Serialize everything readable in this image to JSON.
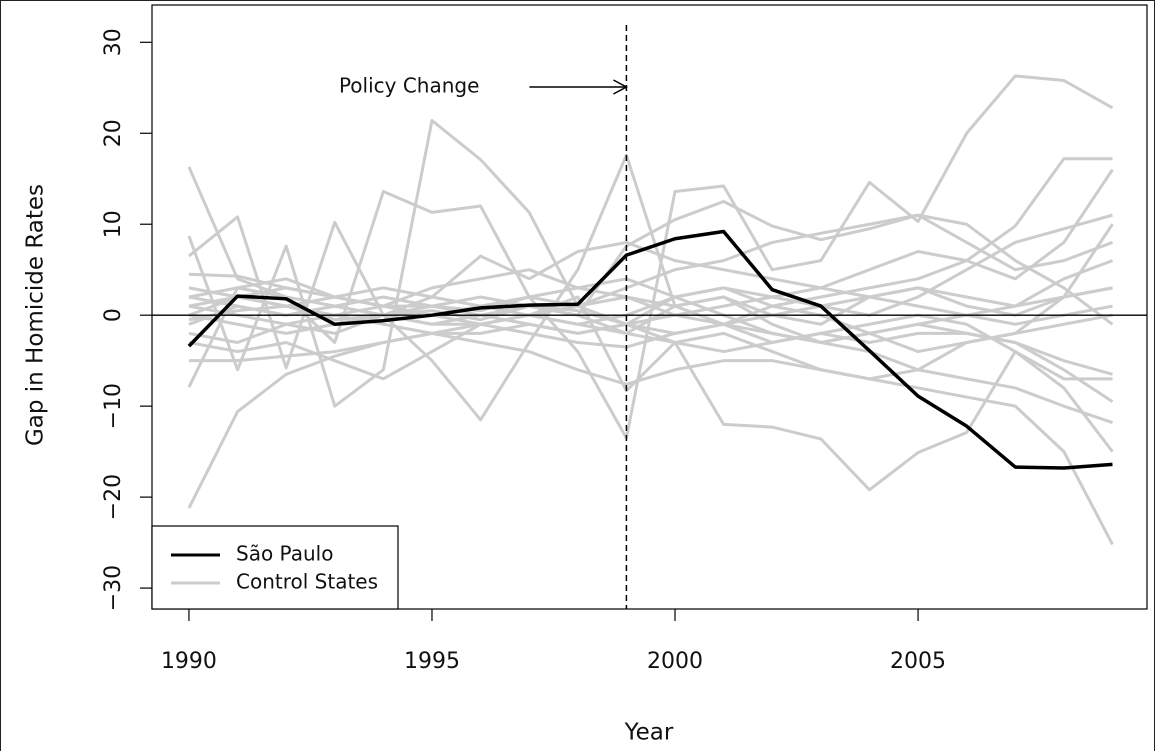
{
  "chart_data": {
    "type": "line",
    "xlabel": "Year",
    "ylabel": "Gap in Homicide Rates",
    "x": [
      1990,
      1991,
      1992,
      1993,
      1994,
      1995,
      1996,
      1997,
      1998,
      1999,
      2000,
      2001,
      2002,
      2003,
      2004,
      2005,
      2006,
      2007,
      2008,
      2009
    ],
    "xlim": [
      1989.24,
      2009.71
    ],
    "xticks": [
      1990,
      1995,
      2000,
      2005
    ],
    "ylim": [
      -32.3,
      34.1
    ],
    "yticks": [
      {
        "value": -30,
        "label": "−30"
      },
      {
        "value": -20,
        "label": "−20"
      },
      {
        "value": -10,
        "label": "−10"
      },
      0,
      10,
      20,
      30
    ],
    "hline": 0,
    "annotation": {
      "text": "Policy Change",
      "x": 1999
    },
    "legend": "bottom-left",
    "series": [
      {
        "name": "São Paulo",
        "color": "#000000",
        "values": [
          -3.4,
          2.1,
          1.8,
          -1,
          -0.6,
          0,
          0.8,
          1.1,
          1.2,
          6.6,
          8.4,
          9.2,
          2.8,
          1.0,
          -3.9,
          -8.9,
          -12.2,
          -16.7,
          -16.8,
          -16.4
        ]
      },
      {
        "name": "Control States",
        "color": "#cccccc",
        "lines": [
          [
            16.3,
            4,
            2,
            1,
            0,
            -1,
            0,
            1,
            0,
            -2,
            1,
            2,
            0,
            -1,
            2,
            3,
            1,
            0,
            2,
            3
          ],
          [
            -21.2,
            -10.6,
            -6.5,
            -4.5,
            -3,
            -2,
            -1,
            0,
            -1,
            -2,
            -3,
            -12,
            -12.3,
            -13.6,
            -19.2,
            -15.1,
            -12.9,
            -4,
            -8,
            -15
          ],
          [
            8.7,
            -6,
            7.6,
            -10,
            -6,
            21.4,
            17.1,
            11.3,
            1,
            -1,
            2,
            3,
            1,
            0,
            -2,
            -4,
            -3,
            -2,
            -1,
            0
          ],
          [
            6.5,
            10.8,
            -5.8,
            10.2,
            0,
            -5,
            -11.5,
            -3,
            5,
            17.6,
            1,
            2,
            -1,
            -3,
            -2,
            -1,
            0,
            1,
            2,
            3
          ],
          [
            -7.9,
            3,
            2,
            -3,
            13.6,
            11.3,
            12,
            2,
            -4,
            -13.5,
            13.6,
            14.2,
            5,
            6,
            14.6,
            10.3,
            20,
            26.3,
            25.8,
            22.8
          ],
          [
            1,
            2,
            3,
            2,
            1,
            0,
            -1,
            -2,
            -3,
            -3.5,
            -2,
            -1,
            1,
            2,
            3,
            4,
            6,
            9.8,
            17.2,
            17.2
          ],
          [
            0,
            -1,
            -2,
            -1,
            0,
            1,
            2,
            1,
            0,
            7.6,
            10.5,
            12.5,
            9.8,
            8.3,
            9.5,
            11,
            8,
            5,
            6,
            8
          ],
          [
            -3,
            -4,
            -3,
            -5,
            -7,
            -4,
            -1,
            0,
            2,
            -8.3,
            -3,
            -2,
            -4,
            -6,
            -7,
            -8,
            -9,
            -10,
            -15,
            -25.2
          ],
          [
            2,
            3,
            4,
            2,
            1,
            0,
            1,
            2,
            1,
            3,
            5,
            6,
            8,
            9,
            10,
            11,
            10,
            6,
            3,
            -1
          ],
          [
            -5,
            -5,
            -4.5,
            -4,
            -3,
            -2,
            -2,
            -1,
            -2,
            -1,
            -3,
            -4,
            -3,
            -2,
            -3,
            -2,
            -2,
            -3,
            -5,
            -6.5
          ],
          [
            4.5,
            4.3,
            3,
            2,
            1,
            1,
            0.5,
            2,
            3,
            4,
            2,
            0,
            -2,
            -3,
            -4,
            -6,
            -7,
            -8,
            -10,
            -11.8
          ],
          [
            1,
            0,
            -1,
            -2,
            0,
            2,
            6.5,
            4,
            7,
            8,
            6,
            5,
            4,
            3,
            2,
            1,
            0,
            -1,
            0,
            1
          ],
          [
            -1,
            1,
            0,
            1,
            2,
            1,
            0,
            -1,
            -2,
            -1,
            0,
            1,
            2,
            3,
            5,
            7,
            6,
            4,
            8,
            16
          ],
          [
            3,
            2,
            1,
            0,
            -1,
            -2,
            -3,
            -4,
            -6,
            -7.6,
            -6,
            -5,
            -5,
            -6,
            -7,
            -6,
            -3,
            -2,
            2,
            10
          ],
          [
            0,
            2,
            1,
            2,
            3,
            2,
            1,
            0,
            -1,
            0,
            2,
            3,
            2,
            1,
            0,
            2,
            5,
            8,
            9.5,
            11
          ],
          [
            -2,
            -3,
            -1,
            0,
            1,
            3,
            4,
            5,
            3,
            2,
            0,
            -1,
            -2,
            -3,
            -2,
            -1,
            -2,
            -3,
            -6,
            -9.5
          ],
          [
            2,
            1,
            0,
            1,
            0,
            -1,
            -1,
            0,
            1,
            2,
            1,
            -1,
            -3,
            -2,
            -1,
            0,
            -1,
            -4,
            -7,
            -7
          ],
          [
            -0.5,
            0.5,
            1,
            -0.5,
            0,
            0.5,
            -0.5,
            1,
            0.5,
            -1,
            -2,
            -1,
            0,
            1,
            2,
            3,
            2,
            1,
            4,
            6
          ]
        ]
      }
    ]
  }
}
